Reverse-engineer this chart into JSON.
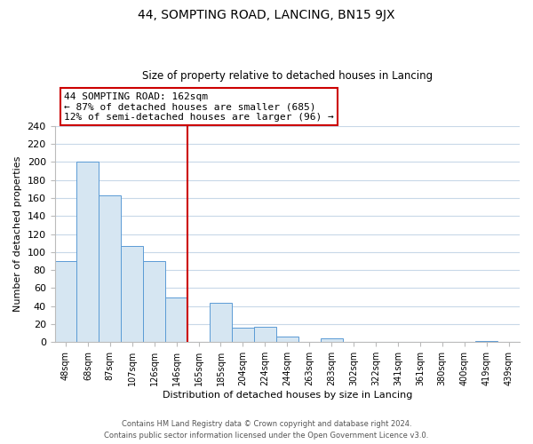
{
  "title": "44, SOMPTING ROAD, LANCING, BN15 9JX",
  "subtitle": "Size of property relative to detached houses in Lancing",
  "xlabel": "Distribution of detached houses by size in Lancing",
  "ylabel": "Number of detached properties",
  "categories": [
    "48sqm",
    "68sqm",
    "87sqm",
    "107sqm",
    "126sqm",
    "146sqm",
    "165sqm",
    "185sqm",
    "204sqm",
    "224sqm",
    "244sqm",
    "263sqm",
    "283sqm",
    "302sqm",
    "322sqm",
    "341sqm",
    "361sqm",
    "380sqm",
    "400sqm",
    "419sqm",
    "439sqm"
  ],
  "values": [
    90,
    200,
    163,
    107,
    90,
    50,
    0,
    44,
    16,
    17,
    6,
    0,
    4,
    0,
    0,
    0,
    0,
    0,
    0,
    1,
    0
  ],
  "bar_color": "#d6e6f2",
  "bar_edge_color": "#5b9bd5",
  "highlight_line_index": 6,
  "highlight_line_color": "#cc0000",
  "annotation_box_text": "44 SOMPTING ROAD: 162sqm\n← 87% of detached houses are smaller (685)\n12% of semi-detached houses are larger (96) →",
  "annotation_box_edge_color": "#cc0000",
  "ylim": [
    0,
    240
  ],
  "yticks": [
    0,
    20,
    40,
    60,
    80,
    100,
    120,
    140,
    160,
    180,
    200,
    220,
    240
  ],
  "footer_line1": "Contains HM Land Registry data © Crown copyright and database right 2024.",
  "footer_line2": "Contains public sector information licensed under the Open Government Licence v3.0.",
  "background_color": "#ffffff",
  "grid_color": "#c8d8e8"
}
